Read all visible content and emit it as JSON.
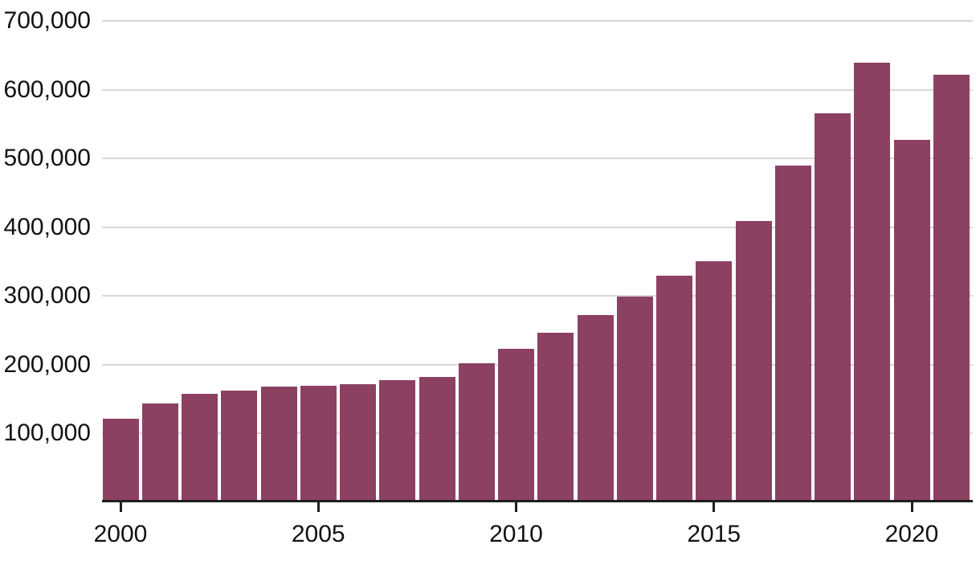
{
  "chart_data": {
    "type": "bar",
    "title": "",
    "categories": [
      "2000",
      "2001",
      "2002",
      "2003",
      "2004",
      "2005",
      "2006",
      "2007",
      "2008",
      "2009",
      "2010",
      "2011",
      "2012",
      "2013",
      "2014",
      "2015",
      "2016",
      "2017",
      "2018",
      "2019",
      "2020",
      "2021"
    ],
    "values": [
      122000,
      144000,
      158000,
      162000,
      168000,
      170000,
      172000,
      178000,
      182000,
      202000,
      223000,
      247000,
      272000,
      299000,
      329000,
      351000,
      409000,
      490000,
      566000,
      639000,
      527000,
      622000
    ],
    "xlabel": "",
    "ylabel": "",
    "ylim": [
      0,
      700000
    ],
    "ytick_interval": 100000,
    "ytick_labels": [
      "100,000",
      "200,000",
      "300,000",
      "400,000",
      "500,000",
      "600,000",
      "700,000"
    ],
    "xticks": [
      {
        "label": "2000",
        "index": 0
      },
      {
        "label": "2005",
        "index": 5
      },
      {
        "label": "2010",
        "index": 10
      },
      {
        "label": "2015",
        "index": 15
      },
      {
        "label": "2020",
        "index": 20
      }
    ],
    "grid": "horizontal-behind-bars",
    "legend": "none",
    "colors": {
      "bar": "#8c4163",
      "gridline": "#d8d8d8",
      "axis": "#1f1f1f",
      "label": "#121212",
      "background": "#ffffff"
    }
  }
}
